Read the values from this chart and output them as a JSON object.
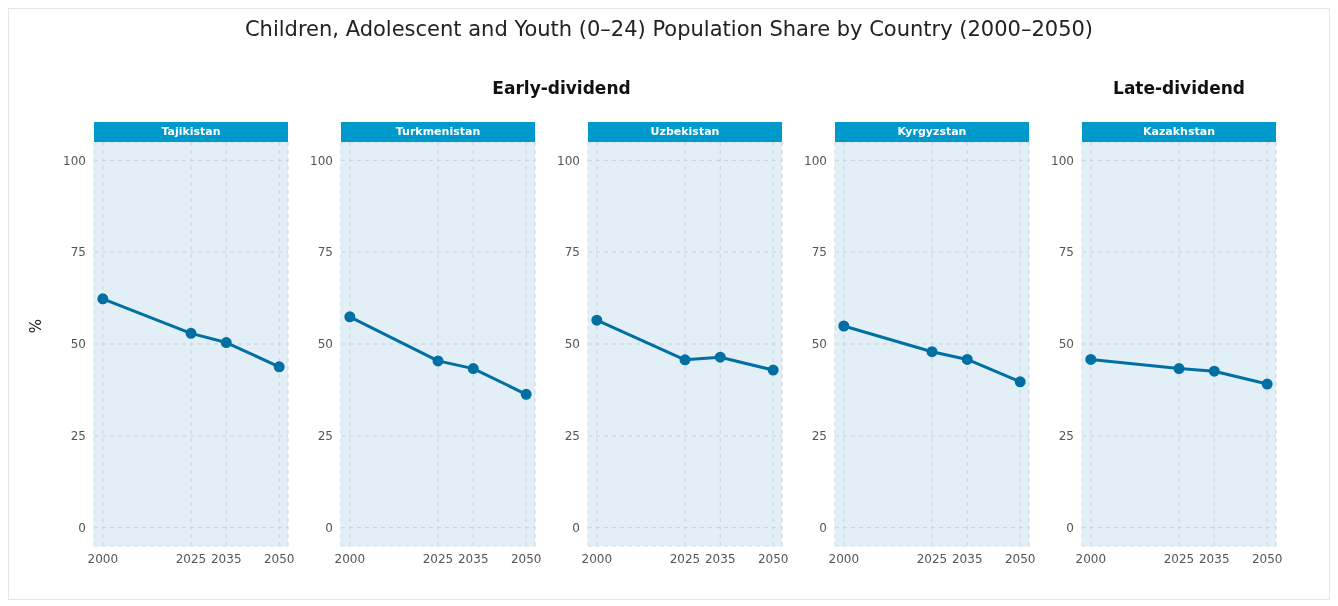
{
  "chart_data": [
    {
      "type": "line",
      "annotations": [
        "Children, Adolescent and Youth (0–24) Population Share by Country (2000–2050)",
        "Early-dividend"
      ],
      "title": "Tajikistan",
      "ylabel": "%",
      "x": [
        2000,
        2025,
        2035,
        2050
      ],
      "xlim": [
        1997.5,
        2052.5
      ],
      "xticks": [
        2000,
        2025,
        2035,
        2050
      ],
      "ylim": [
        -5,
        105
      ],
      "yticks": [
        0,
        25,
        50,
        75,
        100
      ],
      "grid": true,
      "marker": "circle",
      "line_style": "solid",
      "series": [
        {
          "color": "#006fa3",
          "values": [
            62.3,
            52.9,
            50.4,
            43.8
          ]
        }
      ]
    },
    {
      "type": "line",
      "title": "Turkmenistan",
      "x": [
        2000,
        2025,
        2035,
        2050
      ],
      "xlim": [
        1997.5,
        2052.5
      ],
      "xticks": [
        2000,
        2025,
        2035,
        2050
      ],
      "ylim": [
        -5,
        105
      ],
      "yticks": [
        0,
        25,
        50,
        75,
        100
      ],
      "grid": true,
      "marker": "circle",
      "line_style": "solid",
      "series": [
        {
          "color": "#006fa3",
          "values": [
            57.4,
            45.4,
            43.3,
            36.3
          ]
        }
      ]
    },
    {
      "type": "line",
      "title": "Uzbekistan",
      "x": [
        2000,
        2025,
        2035,
        2050
      ],
      "xlim": [
        1997.5,
        2052.5
      ],
      "xticks": [
        2000,
        2025,
        2035,
        2050
      ],
      "ylim": [
        -5,
        105
      ],
      "yticks": [
        0,
        25,
        50,
        75,
        100
      ],
      "grid": true,
      "marker": "circle",
      "line_style": "solid",
      "series": [
        {
          "color": "#006fa3",
          "values": [
            56.5,
            45.7,
            46.4,
            42.9
          ]
        }
      ]
    },
    {
      "type": "line",
      "title": "Kyrgyzstan",
      "x": [
        2000,
        2025,
        2035,
        2050
      ],
      "xlim": [
        1997.5,
        2052.5
      ],
      "xticks": [
        2000,
        2025,
        2035,
        2050
      ],
      "ylim": [
        -5,
        105
      ],
      "yticks": [
        0,
        25,
        50,
        75,
        100
      ],
      "grid": true,
      "marker": "circle",
      "line_style": "solid",
      "series": [
        {
          "color": "#006fa3",
          "values": [
            54.9,
            47.9,
            45.8,
            39.7
          ]
        }
      ]
    },
    {
      "type": "line",
      "subtitle": "Late-dividend",
      "title": "Kazakhstan",
      "x": [
        2000,
        2025,
        2035,
        2050
      ],
      "xlim": [
        1997.5,
        2052.5
      ],
      "xticks": [
        2000,
        2025,
        2035,
        2050
      ],
      "ylim": [
        -5,
        105
      ],
      "yticks": [
        0,
        25,
        50,
        75,
        100
      ],
      "grid": true,
      "marker": "circle",
      "line_style": "solid",
      "series": [
        {
          "color": "#006fa3",
          "values": [
            45.8,
            43.3,
            42.6,
            39.1
          ]
        }
      ]
    }
  ]
}
